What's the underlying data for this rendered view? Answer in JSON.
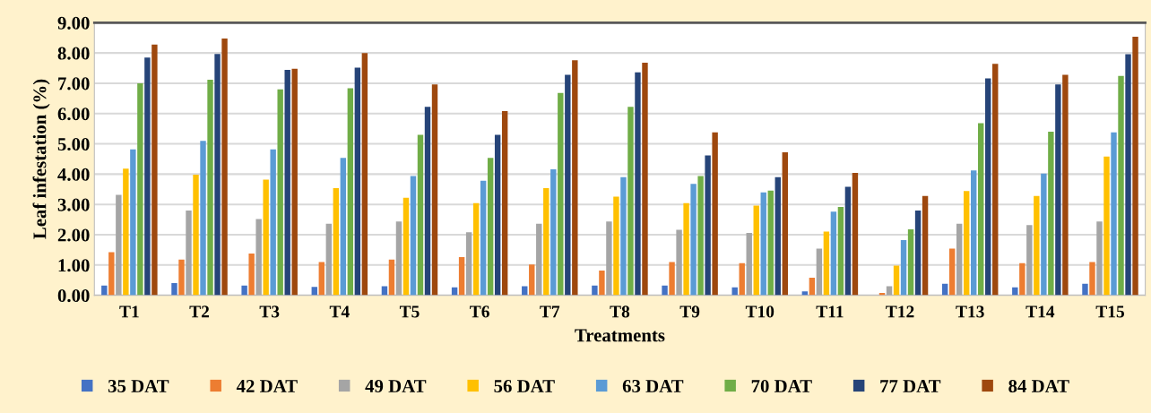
{
  "chart_data": {
    "type": "bar",
    "xlabel": "Treatments",
    "ylabel": "Leaf infestation (%)",
    "categories": [
      "T1",
      "T2",
      "T3",
      "T4",
      "T5",
      "T6",
      "T7",
      "T8",
      "T9",
      "T10",
      "T11",
      "T12",
      "T13",
      "T14",
      "T15"
    ],
    "series": [
      {
        "name": "35 DAT",
        "color": "#4472c4",
        "values": [
          0.32,
          0.4,
          0.32,
          0.28,
          0.3,
          0.26,
          0.3,
          0.32,
          0.32,
          0.26,
          0.13,
          0,
          0.38,
          0.26,
          0.38
        ]
      },
      {
        "name": "42 DAT",
        "color": "#ed7d31",
        "values": [
          1.42,
          1.18,
          1.38,
          1.1,
          1.18,
          1.26,
          1.02,
          0.82,
          1.1,
          1.06,
          0.58,
          0.08,
          1.54,
          1.06,
          1.1
        ]
      },
      {
        "name": "49 DAT",
        "color": "#a5a5a5",
        "values": [
          3.32,
          2.8,
          2.52,
          2.36,
          2.44,
          2.08,
          2.36,
          2.44,
          2.16,
          2.06,
          1.54,
          0.3,
          2.36,
          2.32,
          2.44
        ]
      },
      {
        "name": "56 DAT",
        "color": "#ffc000",
        "values": [
          4.18,
          3.98,
          3.82,
          3.54,
          3.22,
          3.04,
          3.54,
          3.26,
          3.04,
          2.96,
          2.1,
          0.98,
          3.44,
          3.28,
          4.58
        ]
      },
      {
        "name": "63 DAT",
        "color": "#5b9bd5",
        "values": [
          4.82,
          5.1,
          4.82,
          4.54,
          3.94,
          3.78,
          4.16,
          3.9,
          3.68,
          3.4,
          2.76,
          1.82,
          4.12,
          4.02,
          5.38
        ]
      },
      {
        "name": "70 DAT",
        "color": "#70ad47",
        "values": [
          7.0,
          7.12,
          6.8,
          6.84,
          5.3,
          4.54,
          6.68,
          6.22,
          3.94,
          3.46,
          2.92,
          2.18,
          5.68,
          5.4,
          7.24
        ]
      },
      {
        "name": "77 DAT",
        "color": "#264478",
        "values": [
          7.85,
          7.97,
          7.44,
          7.52,
          6.22,
          5.3,
          7.28,
          7.36,
          4.62,
          3.9,
          3.58,
          2.8,
          7.16,
          6.96,
          7.96
        ]
      },
      {
        "name": "84 DAT",
        "color": "#9e480e",
        "values": [
          8.28,
          8.48,
          7.48,
          8.0,
          6.96,
          6.08,
          7.76,
          7.68,
          5.38,
          4.72,
          4.04,
          3.28,
          7.64,
          7.28,
          8.54
        ]
      }
    ],
    "ylim": [
      0,
      9
    ],
    "yticks": [
      {
        "value": 0,
        "label": "0.00"
      },
      {
        "value": 1,
        "label": "1.00"
      },
      {
        "value": 2,
        "label": "2.00"
      },
      {
        "value": 3,
        "label": "3.00"
      },
      {
        "value": 4,
        "label": "4.00"
      },
      {
        "value": 5,
        "label": "5.00"
      },
      {
        "value": 6,
        "label": "6.00"
      },
      {
        "value": 7,
        "label": "7.00"
      },
      {
        "value": 8,
        "label": "8.00"
      },
      {
        "value": 9,
        "label": "9.00"
      }
    ],
    "grid": "y",
    "legend": "bottom"
  }
}
